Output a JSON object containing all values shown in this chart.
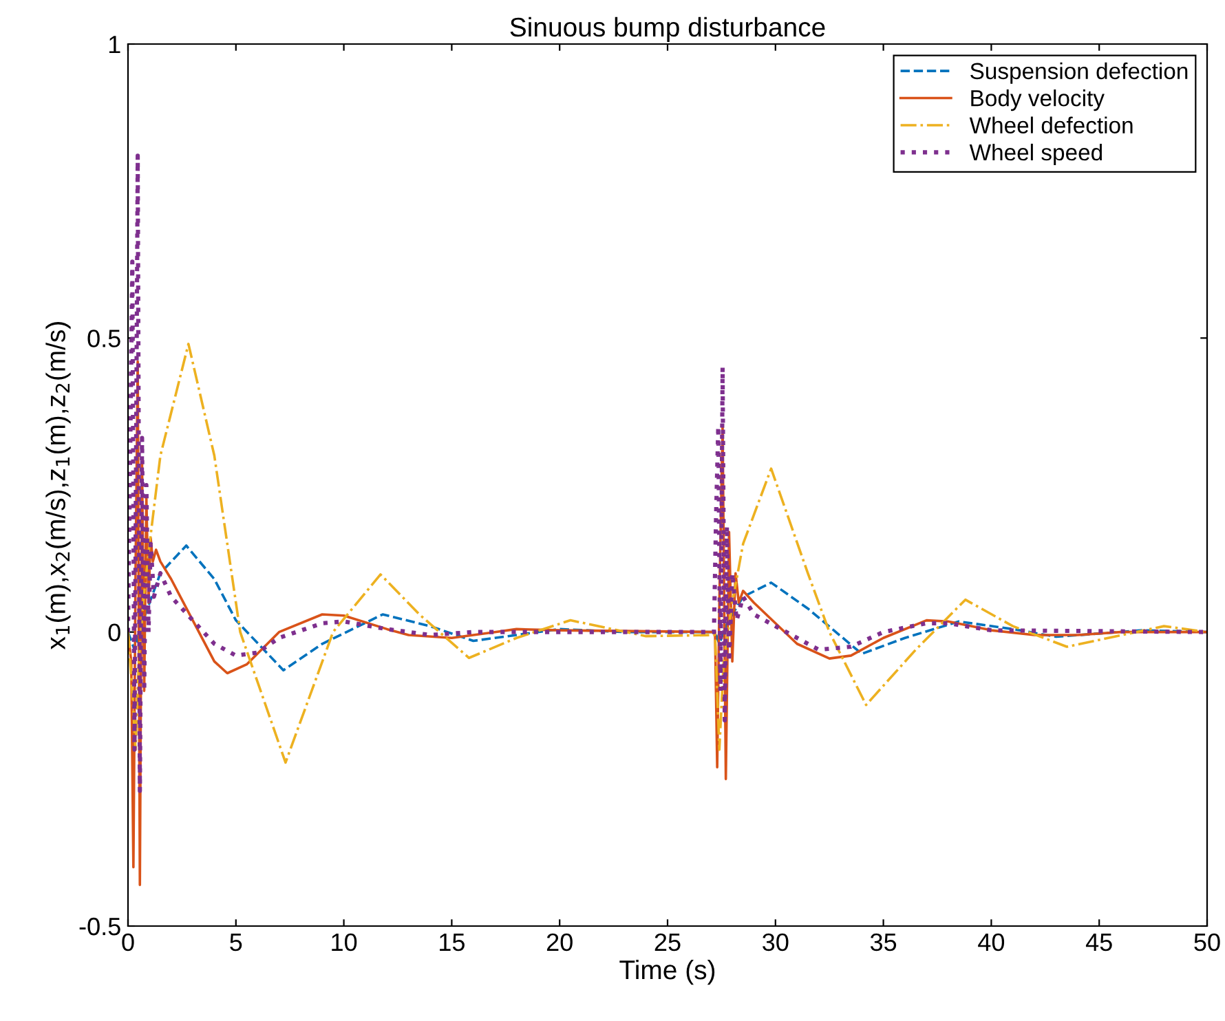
{
  "chart_data": {
    "type": "line",
    "title": "Sinuous bump disturbance",
    "xlabel": "Time (s)",
    "ylabel": "x$_{1}$(m),x$_{2}$(m/s),z$_{1}$(m),z$_{2}$(m/s)",
    "xlim": [
      0,
      50
    ],
    "ylim": [
      -0.5,
      1
    ],
    "xticks": [
      0,
      5,
      10,
      15,
      20,
      25,
      30,
      35,
      40,
      45,
      50
    ],
    "yticks": [
      -0.5,
      0,
      0.5,
      1
    ],
    "grid": false,
    "legend": "top right",
    "series": [
      {
        "name": "Suspension defection",
        "color": "#0072bd",
        "line_style": "dashed",
        "x": [
          0,
          0.3,
          0.6,
          1,
          1.5,
          2.7,
          4,
          5,
          7.2,
          9,
          11.8,
          14,
          16,
          18,
          20,
          23,
          27.2,
          27.4,
          27.7,
          28,
          28.5,
          29.8,
          31.5,
          34,
          36,
          38.5,
          41,
          43,
          47,
          50
        ],
        "values": [
          0,
          -0.03,
          0.01,
          0.05,
          0.1,
          0.147,
          0.09,
          0.02,
          -0.065,
          -0.02,
          0.03,
          0.01,
          -0.015,
          -0.005,
          0.005,
          0,
          0,
          -0.02,
          0.01,
          0.03,
          0.06,
          0.084,
          0.04,
          -0.037,
          -0.01,
          0.018,
          0.005,
          -0.008,
          0.003,
          0
        ]
      },
      {
        "name": "Body velocity",
        "color": "#d95319",
        "line_style": "solid",
        "x": [
          0,
          0.15,
          0.25,
          0.35,
          0.45,
          0.55,
          0.65,
          0.75,
          0.85,
          0.95,
          1.05,
          1.15,
          1.3,
          1.5,
          2,
          3,
          4,
          4.6,
          5.5,
          7,
          9,
          10,
          12,
          13,
          15,
          17,
          18,
          20,
          27.2,
          27.3,
          27.4,
          27.55,
          27.7,
          27.85,
          28,
          28.15,
          28.3,
          28.5,
          29,
          31,
          32.5,
          33.5,
          35,
          37,
          38,
          40,
          42,
          44,
          46,
          50
        ],
        "values": [
          0,
          -0.05,
          -0.4,
          0.1,
          0.46,
          -0.43,
          0.29,
          -0.1,
          0.23,
          0.05,
          0.16,
          0.12,
          0.14,
          0.12,
          0.09,
          0.02,
          -0.05,
          -0.07,
          -0.055,
          0,
          0.03,
          0.028,
          0.005,
          -0.005,
          -0.01,
          0,
          0.005,
          0.003,
          0,
          -0.23,
          0.05,
          0.35,
          -0.25,
          0.17,
          -0.05,
          0.1,
          0.05,
          0.07,
          0.05,
          -0.02,
          -0.045,
          -0.04,
          -0.01,
          0.02,
          0.018,
          0.003,
          -0.005,
          -0.005,
          0,
          0
        ]
      },
      {
        "name": "Wheel defection",
        "color": "#edb120",
        "line_style": "dashdot",
        "x": [
          0,
          0.2,
          0.35,
          0.5,
          0.7,
          1,
          1.5,
          2.8,
          4,
          5.2,
          7.3,
          9.5,
          11.7,
          13.5,
          15.8,
          18,
          20.5,
          24,
          27.2,
          27.4,
          27.6,
          28,
          28.5,
          29.8,
          31.5,
          32.5,
          34.2,
          36.5,
          38.8,
          41,
          43.5,
          48,
          50
        ],
        "values": [
          0,
          -0.1,
          -0.2,
          -0.05,
          0.05,
          0.15,
          0.3,
          0.49,
          0.3,
          0,
          -0.222,
          0,
          0.098,
          0.03,
          -0.044,
          -0.01,
          0.02,
          -0.007,
          -0.005,
          -0.2,
          -0.05,
          0.05,
          0.15,
          0.278,
          0.1,
          0,
          -0.124,
          -0.03,
          0.055,
          0.01,
          -0.025,
          0.01,
          0
        ]
      },
      {
        "name": "Wheel speed",
        "color": "#7e2f8e",
        "line_style": "dotted",
        "x": [
          0,
          0.1,
          0.2,
          0.3,
          0.45,
          0.55,
          0.65,
          0.75,
          0.85,
          0.95,
          1.05,
          1.2,
          1.5,
          2,
          3,
          4,
          5,
          6,
          7,
          9,
          10,
          12,
          14,
          16,
          27.15,
          27.25,
          27.35,
          27.45,
          27.55,
          27.65,
          27.75,
          27.85,
          28,
          28.2,
          28.5,
          29,
          31,
          32,
          33.5,
          35,
          37,
          38,
          40,
          50
        ],
        "values": [
          0,
          0.3,
          0.63,
          -0.2,
          0.81,
          -0.27,
          0.33,
          -0.1,
          0.25,
          0,
          0.15,
          0.06,
          0.1,
          0.06,
          0.02,
          -0.02,
          -0.04,
          -0.035,
          -0.01,
          0.015,
          0.018,
          0.005,
          -0.005,
          0,
          0,
          0.2,
          0.35,
          -0.1,
          0.45,
          -0.15,
          0.18,
          -0.05,
          0.1,
          0.02,
          0.06,
          0.03,
          -0.01,
          -0.03,
          -0.025,
          0,
          0.015,
          0.015,
          0.003,
          0
        ]
      }
    ]
  }
}
